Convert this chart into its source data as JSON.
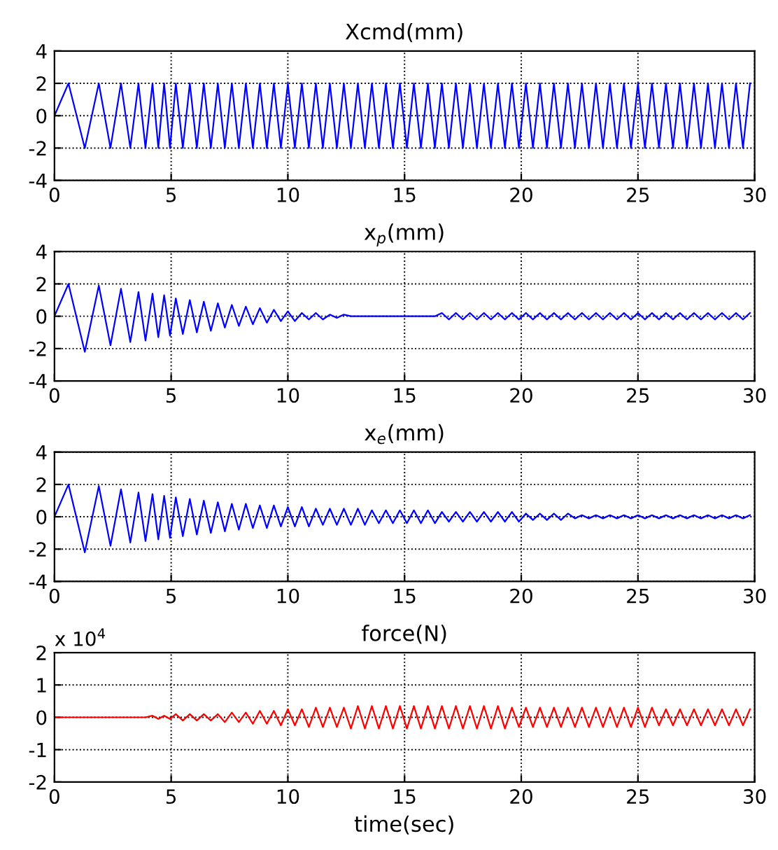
{
  "chart_data": [
    {
      "type": "line",
      "title": "Xcmd(mm)",
      "xlim": [
        0,
        30
      ],
      "ylim": [
        -4,
        4
      ],
      "xticks": [
        0,
        5,
        10,
        15,
        20,
        25,
        30
      ],
      "yticks": [
        -4,
        -2,
        0,
        2,
        4
      ],
      "grid": true,
      "x": [
        0,
        0.6,
        1.3,
        1.9,
        2.4,
        2.85,
        3.25,
        3.6,
        3.9,
        4.2,
        4.45,
        4.7,
        4.95,
        5.2,
        5.5,
        5.8,
        6.1,
        6.4,
        6.7,
        7.0,
        7.3,
        7.6,
        7.9,
        8.2,
        8.5,
        8.8,
        9.1,
        9.4,
        9.7,
        10.0,
        10.3,
        10.6,
        10.9,
        11.2,
        11.5,
        11.8,
        12.1,
        12.4,
        12.7,
        13.0,
        13.3,
        13.6,
        13.9,
        14.2,
        14.5,
        14.8,
        15.1,
        15.4,
        15.7,
        16.0,
        16.3,
        16.6,
        16.9,
        17.2,
        17.5,
        17.8,
        18.1,
        18.4,
        18.7,
        19.0,
        19.3,
        19.6,
        19.9,
        20.2,
        20.5,
        20.8,
        21.1,
        21.4,
        21.7,
        22.0,
        22.3,
        22.6,
        22.9,
        23.2,
        23.5,
        23.8,
        24.1,
        24.4,
        24.7,
        25.0,
        25.3,
        25.6,
        25.9,
        26.2,
        26.5,
        26.8,
        27.1,
        27.4,
        27.7,
        28.0,
        28.3,
        28.6,
        28.9,
        29.2,
        29.5,
        29.8
      ],
      "series": [
        {
          "color": "#0000ff",
          "values": [
            0,
            2,
            -2,
            2,
            -2,
            2,
            -2,
            2,
            -2,
            2,
            -2,
            2,
            -2,
            2,
            -2,
            2,
            -2,
            2,
            -2,
            2,
            -2,
            2,
            -2,
            2,
            -2,
            2,
            -2,
            2,
            -2,
            2,
            -2,
            2,
            -2,
            2,
            -2,
            2,
            -2,
            2,
            -2,
            2,
            -2,
            2,
            -2,
            2,
            -2,
            2,
            -2,
            2,
            -2,
            2,
            -2,
            2,
            -2,
            2,
            -2,
            2,
            -2,
            2,
            -2,
            2,
            -2,
            2,
            -2,
            2,
            -2,
            2,
            -2,
            2,
            -2,
            2,
            -2,
            2,
            -2,
            2,
            -2,
            2,
            -2,
            2,
            -2,
            2,
            -2,
            2,
            -2,
            2,
            -2,
            2,
            -2,
            2,
            -2,
            2,
            -2,
            2,
            -2,
            2,
            -2,
            2
          ]
        }
      ]
    },
    {
      "type": "line",
      "title": "x$_{p}$(mm)",
      "xlim": [
        0,
        30
      ],
      "ylim": [
        -4,
        4
      ],
      "xticks": [
        0,
        5,
        10,
        15,
        20,
        25,
        30
      ],
      "yticks": [
        -4,
        -2,
        0,
        2,
        4
      ],
      "grid": true,
      "x": [
        0,
        0.6,
        1.3,
        1.9,
        2.4,
        2.85,
        3.25,
        3.6,
        3.9,
        4.2,
        4.45,
        4.7,
        4.95,
        5.2,
        5.5,
        5.8,
        6.1,
        6.4,
        6.7,
        7.0,
        7.3,
        7.6,
        7.9,
        8.2,
        8.5,
        8.8,
        9.1,
        9.4,
        9.7,
        10.0,
        10.3,
        10.6,
        10.9,
        11.2,
        11.5,
        11.8,
        12.1,
        12.4,
        12.7,
        13.0,
        13.3,
        13.6,
        13.9,
        14.2,
        14.5,
        14.8,
        15.1,
        15.4,
        15.7,
        16.0,
        16.3,
        16.6,
        16.9,
        17.2,
        17.5,
        17.8,
        18.1,
        18.4,
        18.7,
        19.0,
        19.3,
        19.6,
        19.9,
        20.2,
        20.5,
        20.8,
        21.1,
        21.4,
        21.7,
        22.0,
        22.3,
        22.6,
        22.9,
        23.2,
        23.5,
        23.8,
        24.1,
        24.4,
        24.7,
        25.0,
        25.3,
        25.6,
        25.9,
        26.2,
        26.5,
        26.8,
        27.1,
        27.4,
        27.7,
        28.0,
        28.3,
        28.6,
        28.9,
        29.2,
        29.5,
        29.8
      ],
      "series": [
        {
          "color": "#0000ff",
          "values": [
            0,
            2,
            -2.2,
            1.9,
            -1.8,
            1.7,
            -1.6,
            1.5,
            -1.5,
            1.4,
            -1.3,
            1.3,
            -1.2,
            1.1,
            -1.1,
            1,
            -1,
            0.9,
            -0.9,
            0.8,
            -0.7,
            0.7,
            -0.6,
            0.6,
            -0.5,
            0.5,
            -0.4,
            0.4,
            -0.3,
            0.3,
            -0.3,
            0.2,
            -0.2,
            0.2,
            -0.2,
            0.1,
            -0.1,
            0.1,
            0,
            0,
            0,
            0,
            0,
            0,
            0,
            0,
            0,
            0,
            0,
            0,
            0,
            0.2,
            -0.2,
            0.2,
            -0.2,
            0.2,
            -0.2,
            0.2,
            -0.2,
            0.2,
            -0.2,
            0.2,
            -0.2,
            0.2,
            -0.2,
            0.2,
            -0.2,
            0.2,
            -0.2,
            0.2,
            -0.2,
            0.2,
            -0.2,
            0.2,
            -0.2,
            0.2,
            -0.2,
            0.2,
            -0.2,
            0.2,
            -0.2,
            0.2,
            -0.2,
            0.2,
            -0.2,
            0.2,
            -0.2,
            0.2,
            -0.2,
            0.2,
            -0.2,
            0.2,
            -0.2,
            0.2,
            -0.2,
            0.2
          ]
        }
      ]
    },
    {
      "type": "line",
      "title": "x$_{e}$(mm)",
      "xlim": [
        0,
        30
      ],
      "ylim": [
        -4,
        4
      ],
      "xticks": [
        0,
        5,
        10,
        15,
        20,
        25,
        30
      ],
      "yticks": [
        -4,
        -2,
        0,
        2,
        4
      ],
      "grid": true,
      "x": [
        0,
        0.6,
        1.3,
        1.9,
        2.4,
        2.85,
        3.25,
        3.6,
        3.9,
        4.2,
        4.45,
        4.7,
        4.95,
        5.2,
        5.5,
        5.8,
        6.1,
        6.4,
        6.7,
        7.0,
        7.3,
        7.6,
        7.9,
        8.2,
        8.5,
        8.8,
        9.1,
        9.4,
        9.7,
        10.0,
        10.3,
        10.6,
        10.9,
        11.2,
        11.5,
        11.8,
        12.1,
        12.4,
        12.7,
        13.0,
        13.3,
        13.6,
        13.9,
        14.2,
        14.5,
        14.8,
        15.1,
        15.4,
        15.7,
        16.0,
        16.3,
        16.6,
        16.9,
        17.2,
        17.5,
        17.8,
        18.1,
        18.4,
        18.7,
        19.0,
        19.3,
        19.6,
        19.9,
        20.2,
        20.5,
        20.8,
        21.1,
        21.4,
        21.7,
        22.0,
        22.3,
        22.6,
        22.9,
        23.2,
        23.5,
        23.8,
        24.1,
        24.4,
        24.7,
        25.0,
        25.3,
        25.6,
        25.9,
        26.2,
        26.5,
        26.8,
        27.1,
        27.4,
        27.7,
        28.0,
        28.3,
        28.6,
        28.9,
        29.2,
        29.5,
        29.8
      ],
      "series": [
        {
          "color": "#0000ff",
          "values": [
            0,
            2,
            -2.2,
            1.9,
            -1.8,
            1.7,
            -1.6,
            1.5,
            -1.5,
            1.4,
            -1.4,
            1.3,
            -1.3,
            1.2,
            -1.2,
            1.1,
            -1.1,
            1.0,
            -1.0,
            0.9,
            -0.9,
            0.8,
            -0.8,
            0.8,
            -0.7,
            0.7,
            -0.7,
            0.7,
            -0.6,
            0.6,
            -0.6,
            0.6,
            -0.6,
            0.5,
            -0.5,
            0.5,
            -0.5,
            0.5,
            -0.5,
            0.5,
            -0.5,
            0.4,
            -0.4,
            0.4,
            -0.4,
            0.4,
            -0.4,
            0.4,
            -0.4,
            0.4,
            -0.4,
            0.3,
            -0.3,
            0.3,
            -0.3,
            0.3,
            -0.3,
            0.3,
            -0.3,
            0.3,
            -0.3,
            0.3,
            -0.3,
            0.2,
            -0.2,
            0.2,
            -0.2,
            0.2,
            -0.2,
            0.2,
            -0.1,
            0.1,
            -0.1,
            0.1,
            -0.1,
            0.1,
            -0.1,
            0.1,
            -0.1,
            0.1,
            -0.1,
            0.1,
            -0.1,
            0.1,
            -0.1,
            0.1,
            -0.1,
            0.1,
            -0.1,
            0.1,
            -0.1,
            0.1,
            -0.1,
            0.1,
            -0.1,
            0.1
          ]
        }
      ]
    },
    {
      "type": "line",
      "title": "force(N)",
      "xlabel": "time(sec)",
      "annotations": [
        "x 10$^{4}$"
      ],
      "xlim": [
        0,
        30
      ],
      "ylim": [
        -2,
        2
      ],
      "xticks": [
        0,
        5,
        10,
        15,
        20,
        25,
        30
      ],
      "yticks": [
        -2,
        -1,
        0,
        1,
        2
      ],
      "grid": true,
      "x": [
        0,
        0.6,
        1.3,
        1.9,
        2.4,
        2.85,
        3.25,
        3.6,
        3.9,
        4.2,
        4.45,
        4.7,
        4.95,
        5.2,
        5.5,
        5.8,
        6.1,
        6.4,
        6.7,
        7.0,
        7.3,
        7.6,
        7.9,
        8.2,
        8.5,
        8.8,
        9.1,
        9.4,
        9.7,
        10.0,
        10.3,
        10.6,
        10.9,
        11.2,
        11.5,
        11.8,
        12.1,
        12.4,
        12.7,
        13.0,
        13.3,
        13.6,
        13.9,
        14.2,
        14.5,
        14.8,
        15.1,
        15.4,
        15.7,
        16.0,
        16.3,
        16.6,
        16.9,
        17.2,
        17.5,
        17.8,
        18.1,
        18.4,
        18.7,
        19.0,
        19.3,
        19.6,
        19.9,
        20.2,
        20.5,
        20.8,
        21.1,
        21.4,
        21.7,
        22.0,
        22.3,
        22.6,
        22.9,
        23.2,
        23.5,
        23.8,
        24.1,
        24.4,
        24.7,
        25.0,
        25.3,
        25.6,
        25.9,
        26.2,
        26.5,
        26.8,
        27.1,
        27.4,
        27.7,
        28.0,
        28.3,
        28.6,
        28.9,
        29.2,
        29.5,
        29.8
      ],
      "series": [
        {
          "color": "#ff0000",
          "values": [
            0,
            0,
            0,
            0,
            0,
            0,
            0,
            0,
            0,
            0.05,
            -0.05,
            0.05,
            -0.05,
            0.1,
            -0.1,
            0.1,
            -0.1,
            0.1,
            -0.1,
            0.1,
            -0.15,
            0.15,
            -0.15,
            0.15,
            -0.2,
            0.2,
            -0.2,
            0.2,
            -0.25,
            0.25,
            -0.25,
            0.25,
            -0.3,
            0.3,
            -0.3,
            0.3,
            -0.3,
            0.3,
            -0.35,
            0.35,
            -0.35,
            0.35,
            -0.35,
            0.35,
            -0.35,
            0.35,
            -0.35,
            0.35,
            -0.35,
            0.35,
            -0.35,
            0.35,
            -0.35,
            0.35,
            -0.35,
            0.35,
            -0.35,
            0.35,
            -0.35,
            0.35,
            -0.35,
            0.3,
            -0.3,
            0.3,
            -0.3,
            0.3,
            -0.3,
            0.3,
            -0.3,
            0.3,
            -0.3,
            0.3,
            -0.3,
            0.3,
            -0.3,
            0.3,
            -0.3,
            0.3,
            -0.3,
            0.3,
            -0.3,
            0.3,
            -0.25,
            0.25,
            -0.25,
            0.25,
            -0.25,
            0.25,
            -0.25,
            0.25,
            -0.25,
            0.25,
            -0.25,
            0.25,
            -0.25,
            0.25
          ]
        }
      ]
    }
  ]
}
